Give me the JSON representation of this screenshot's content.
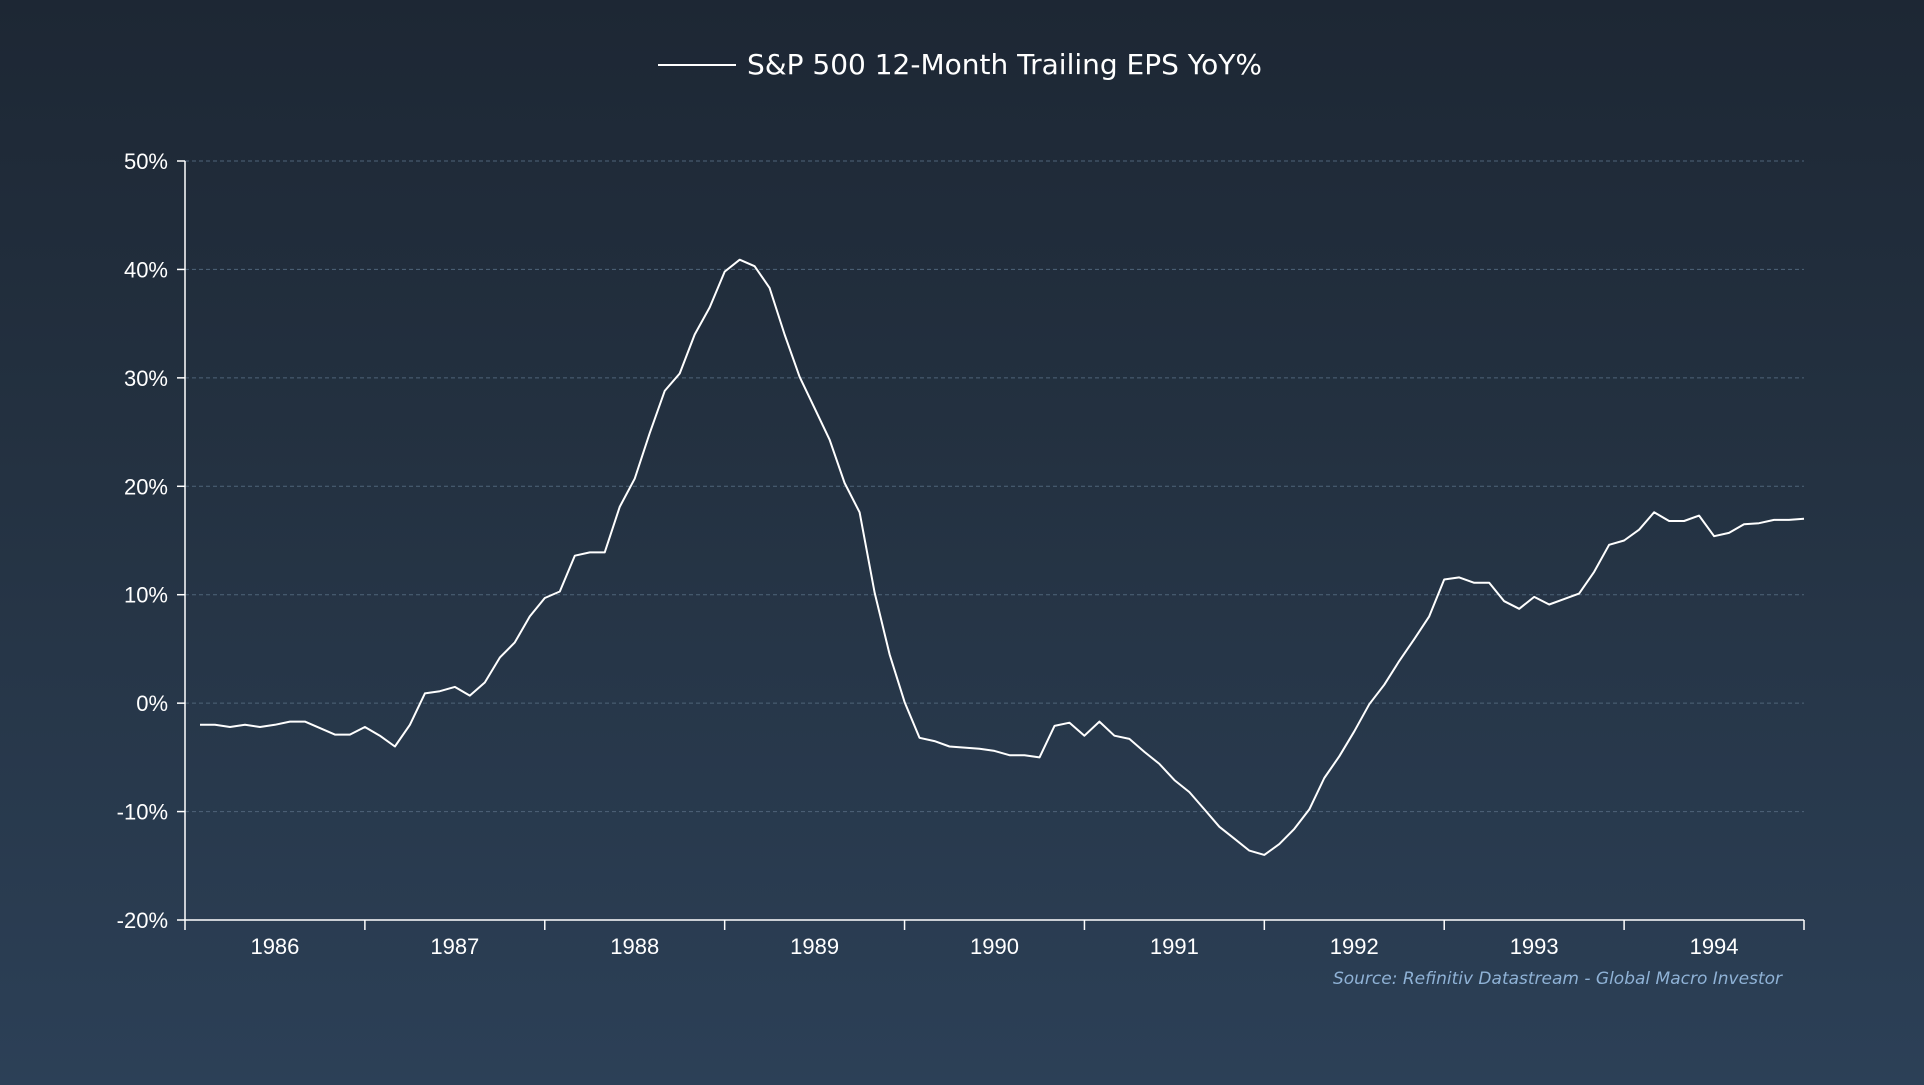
{
  "chart_data": {
    "type": "line",
    "legend": {
      "position": "top-center"
    },
    "grid": {
      "horizontal": true,
      "vertical": false,
      "style": "dashed"
    },
    "ylim": [
      -20,
      50
    ],
    "y_ticks": [
      50,
      40,
      30,
      20,
      10,
      0,
      -10,
      -20
    ],
    "y_tick_labels": [
      "50%",
      "40%",
      "30%",
      "20%",
      "10%",
      "0%",
      "-10%",
      "-20%"
    ],
    "xlim": [
      0,
      108
    ],
    "x_tick_labels": [
      "1986",
      "1987",
      "1988",
      "1989",
      "1990",
      "1991",
      "1992",
      "1993",
      "1994"
    ],
    "series": [
      {
        "name": "S&P 500 12-Month Trailing EPS YoY%",
        "color": "#ffffff",
        "x": [
          1,
          2,
          3,
          4,
          5,
          6,
          7,
          8,
          9,
          10,
          11,
          12,
          13,
          14,
          15,
          16,
          17,
          18,
          19,
          20,
          21,
          22,
          23,
          24,
          25,
          26,
          27,
          28,
          29,
          30,
          31,
          32,
          33,
          34,
          35,
          36,
          37,
          38,
          39,
          40,
          41,
          42,
          43,
          44,
          45,
          46,
          47,
          48,
          49,
          50,
          51,
          52,
          53,
          54,
          55,
          56,
          57,
          58,
          59,
          60,
          61,
          62,
          63,
          64,
          65,
          66,
          67,
          68,
          69,
          70,
          71,
          72,
          73,
          74,
          75,
          76,
          77,
          78,
          79,
          80,
          81,
          82,
          83,
          84,
          85,
          86,
          87,
          88,
          89,
          90,
          91,
          92,
          93,
          94,
          95,
          96,
          97,
          98,
          99,
          100,
          101,
          102,
          103,
          104,
          105,
          106,
          107,
          108
        ],
        "values": [
          -2.0,
          -2.0,
          -2.2,
          -2.0,
          -2.2,
          -2.0,
          -1.7,
          -1.7,
          -2.3,
          -2.9,
          -2.9,
          -2.2,
          -3.0,
          -4.0,
          -2.0,
          0.9,
          1.1,
          1.5,
          0.7,
          1.9,
          4.2,
          5.6,
          8.0,
          9.7,
          10.3,
          13.6,
          13.9,
          13.9,
          18.1,
          20.7,
          24.9,
          28.8,
          30.4,
          34.0,
          36.5,
          39.8,
          40.9,
          40.3,
          38.3,
          34.0,
          30.1,
          27.2,
          24.3,
          20.3,
          17.6,
          10.2,
          4.5,
          0.1,
          -3.2,
          -3.5,
          -4.0,
          -4.1,
          -4.2,
          -4.4,
          -4.8,
          -4.8,
          -5.0,
          -2.1,
          -1.8,
          -3.0,
          -1.7,
          -3.0,
          -3.3,
          -4.5,
          -5.6,
          -7.1,
          -8.2,
          -9.8,
          -11.4,
          -12.5,
          -13.6,
          -14.0,
          -13.0,
          -11.6,
          -9.8,
          -6.9,
          -4.9,
          -2.6,
          -0.1,
          1.7,
          3.9,
          5.9,
          8.0,
          11.4,
          11.6,
          11.1,
          11.1,
          9.4,
          8.7,
          9.8,
          9.1,
          9.6,
          10.1,
          12.1,
          14.6,
          15.0,
          16.0,
          17.6,
          16.8,
          16.8,
          17.3,
          15.4,
          15.7,
          16.5,
          16.6,
          16.9,
          16.9,
          17.0
        ]
      }
    ],
    "source": "Source: Refinitiv Datastream - Global Macro Investor"
  }
}
